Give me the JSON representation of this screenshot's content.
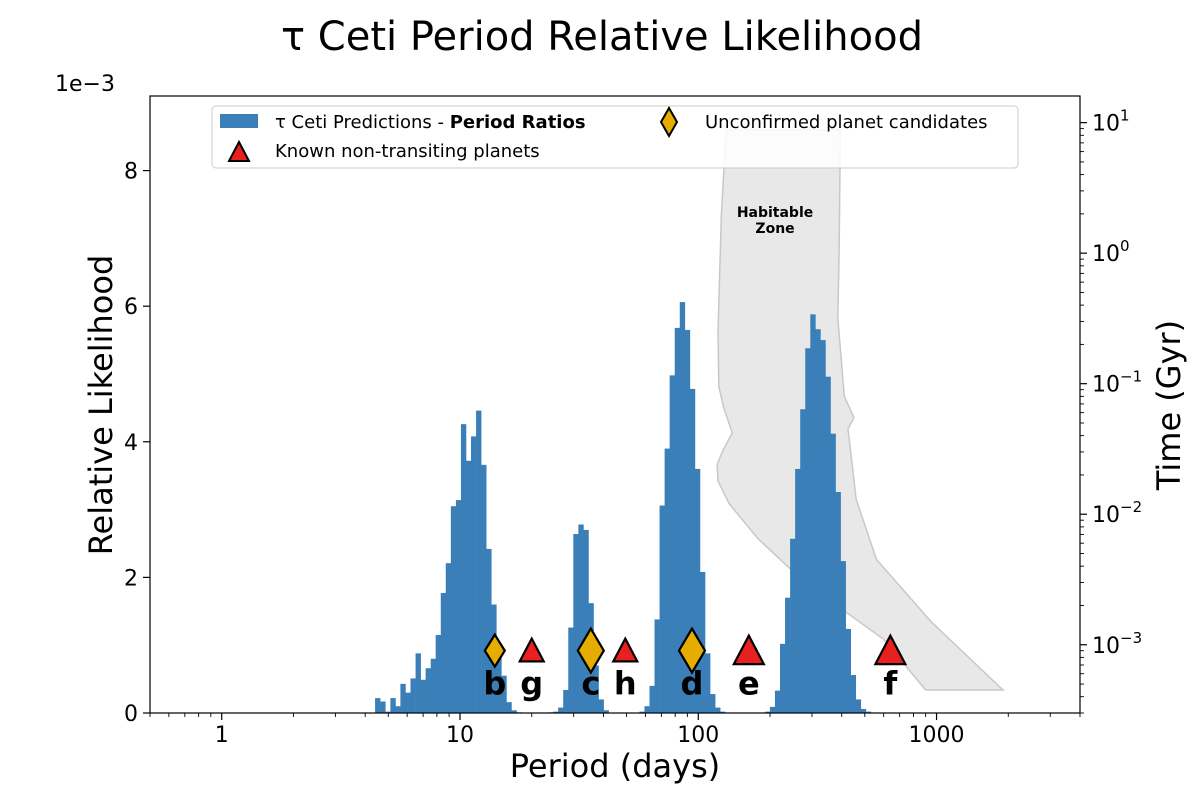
{
  "chart_data": {
    "type": "bar",
    "title": "τ Ceti Period Relative Likelihood",
    "xlabel": "Period (days)",
    "ylabel": "Relative Likelihood",
    "y2label": "Time (Gyr)",
    "y_offset_text": "1e−3",
    "x_scale": "log",
    "xlim": [
      0.5,
      4000
    ],
    "ylim": [
      0,
      9.1
    ],
    "y_scale_factor": 0.001,
    "y2_scale": "log",
    "y2lim": [
      0.0003,
      16
    ],
    "x_ticks": [
      {
        "value": 1,
        "label": "1"
      },
      {
        "value": 10,
        "label": "10"
      },
      {
        "value": 100,
        "label": "100"
      },
      {
        "value": 1000,
        "label": "1000"
      }
    ],
    "y_ticks": [
      {
        "value": 0,
        "label": "0"
      },
      {
        "value": 2,
        "label": "2"
      },
      {
        "value": 4,
        "label": "4"
      },
      {
        "value": 6,
        "label": "6"
      },
      {
        "value": 8,
        "label": "8"
      }
    ],
    "y2_ticks": [
      {
        "value": 0.001,
        "base": "10",
        "exp": "−3"
      },
      {
        "value": 0.01,
        "base": "10",
        "exp": "−2"
      },
      {
        "value": 0.1,
        "base": "10",
        "exp": "−1"
      },
      {
        "value": 1,
        "base": "10",
        "exp": "0"
      },
      {
        "value": 10,
        "base": "10",
        "exp": "1"
      }
    ],
    "colors": {
      "histogram": "#3a7fb8",
      "known": "#e8201f",
      "candidate": "#e6ac00",
      "habitable": "#e8e8e8",
      "habitable_edge": "#c8c8c8"
    },
    "histogram": {
      "name": "τ Ceti Predictions - Period Ratios",
      "bin_ratio": 1.05,
      "bins": [
        {
          "p": 4.51,
          "v": 0.22
        },
        {
          "p": 4.74,
          "v": 0.17
        },
        {
          "p": 4.98,
          "v": 0.02
        },
        {
          "p": 5.23,
          "v": 0.22
        },
        {
          "p": 5.49,
          "v": 0.1
        },
        {
          "p": 5.76,
          "v": 0.43
        },
        {
          "p": 6.05,
          "v": 0.3
        },
        {
          "p": 6.35,
          "v": 0.51
        },
        {
          "p": 6.67,
          "v": 0.88
        },
        {
          "p": 7.0,
          "v": 0.49
        },
        {
          "p": 7.35,
          "v": 0.66
        },
        {
          "p": 7.72,
          "v": 0.8
        },
        {
          "p": 8.1,
          "v": 1.15
        },
        {
          "p": 8.51,
          "v": 1.77
        },
        {
          "p": 8.93,
          "v": 2.21
        },
        {
          "p": 9.38,
          "v": 3.05
        },
        {
          "p": 9.85,
          "v": 3.14
        },
        {
          "p": 10.34,
          "v": 4.26
        },
        {
          "p": 10.86,
          "v": 3.72
        },
        {
          "p": 11.4,
          "v": 4.08
        },
        {
          "p": 11.97,
          "v": 4.46
        },
        {
          "p": 12.57,
          "v": 3.66
        },
        {
          "p": 13.2,
          "v": 2.42
        },
        {
          "p": 13.86,
          "v": 1.6
        },
        {
          "p": 14.55,
          "v": 0.98
        },
        {
          "p": 15.28,
          "v": 0.55
        },
        {
          "p": 16.04,
          "v": 0.16
        },
        {
          "p": 16.85,
          "v": 0.04
        },
        {
          "p": 17.69,
          "v": 0.01
        },
        {
          "p": 24.0,
          "v": 0.01
        },
        {
          "p": 25.2,
          "v": 0.02
        },
        {
          "p": 26.46,
          "v": 0.08
        },
        {
          "p": 27.78,
          "v": 0.34
        },
        {
          "p": 29.17,
          "v": 1.26
        },
        {
          "p": 30.63,
          "v": 2.64
        },
        {
          "p": 32.16,
          "v": 2.78
        },
        {
          "p": 33.77,
          "v": 2.7
        },
        {
          "p": 35.46,
          "v": 1.62
        },
        {
          "p": 37.23,
          "v": 0.7
        },
        {
          "p": 39.09,
          "v": 0.2
        },
        {
          "p": 41.04,
          "v": 0.04
        },
        {
          "p": 58.0,
          "v": 0.02
        },
        {
          "p": 60.9,
          "v": 0.1
        },
        {
          "p": 63.95,
          "v": 0.4
        },
        {
          "p": 67.14,
          "v": 1.38
        },
        {
          "p": 70.5,
          "v": 3.06
        },
        {
          "p": 74.02,
          "v": 3.9
        },
        {
          "p": 77.72,
          "v": 4.98
        },
        {
          "p": 81.61,
          "v": 5.68
        },
        {
          "p": 85.69,
          "v": 6.06
        },
        {
          "p": 89.98,
          "v": 5.65
        },
        {
          "p": 94.48,
          "v": 4.78
        },
        {
          "p": 99.2,
          "v": 3.6
        },
        {
          "p": 104.16,
          "v": 2.08
        },
        {
          "p": 109.37,
          "v": 0.88
        },
        {
          "p": 114.84,
          "v": 0.28
        },
        {
          "p": 120.58,
          "v": 0.08
        },
        {
          "p": 126.61,
          "v": 0.02
        },
        {
          "p": 195.0,
          "v": 0.02
        },
        {
          "p": 204.75,
          "v": 0.09
        },
        {
          "p": 214.99,
          "v": 0.33
        },
        {
          "p": 225.74,
          "v": 1.02
        },
        {
          "p": 237.02,
          "v": 1.7
        },
        {
          "p": 248.88,
          "v": 2.57
        },
        {
          "p": 261.32,
          "v": 3.6
        },
        {
          "p": 274.39,
          "v": 4.48
        },
        {
          "p": 288.11,
          "v": 5.38
        },
        {
          "p": 302.51,
          "v": 5.88
        },
        {
          "p": 317.64,
          "v": 5.66
        },
        {
          "p": 333.52,
          "v": 5.5
        },
        {
          "p": 350.2,
          "v": 4.96
        },
        {
          "p": 367.71,
          "v": 4.12
        },
        {
          "p": 386.09,
          "v": 3.26
        },
        {
          "p": 405.4,
          "v": 2.24
        },
        {
          "p": 425.67,
          "v": 1.24
        },
        {
          "p": 446.95,
          "v": 0.56
        },
        {
          "p": 469.3,
          "v": 0.2
        },
        {
          "p": 492.77,
          "v": 0.06
        },
        {
          "p": 517.4,
          "v": 0.02
        }
      ]
    },
    "planets": [
      {
        "label": "b",
        "period": 14.0,
        "kind": "candidate",
        "size": "small"
      },
      {
        "label": "g",
        "period": 20.0,
        "kind": "known",
        "size": "small"
      },
      {
        "label": "c",
        "period": 35.4,
        "kind": "candidate",
        "size": "large"
      },
      {
        "label": "h",
        "period": 49.4,
        "kind": "known",
        "size": "small"
      },
      {
        "label": "d",
        "period": 94.1,
        "kind": "candidate",
        "size": "large"
      },
      {
        "label": "e",
        "period": 163.0,
        "kind": "known",
        "size": "large"
      },
      {
        "label": "f",
        "period": 640.0,
        "kind": "known",
        "size": "large"
      }
    ],
    "marker_y": 0.92,
    "label_y": 0.45,
    "habitable_zone": {
      "label_line1": "Habitable",
      "label_line2": "Zone",
      "label_period": 210,
      "label_time": 1.9,
      "inner": [
        {
          "p": 131,
          "t": 8.8
        },
        {
          "p": 125,
          "t": 2.0
        },
        {
          "p": 121,
          "t": 0.25
        },
        {
          "p": 122,
          "t": 0.095
        },
        {
          "p": 128,
          "t": 0.065
        },
        {
          "p": 139,
          "t": 0.042
        },
        {
          "p": 126,
          "t": 0.03
        },
        {
          "p": 120,
          "t": 0.024
        },
        {
          "p": 121,
          "t": 0.018
        },
        {
          "p": 135,
          "t": 0.012
        },
        {
          "p": 178,
          "t": 0.0065
        },
        {
          "p": 280,
          "t": 0.003
        },
        {
          "p": 600,
          "t": 0.0011
        },
        {
          "p": 900,
          "t": 0.00045
        }
      ],
      "outer": [
        {
          "p": 1900,
          "t": 0.00045
        },
        {
          "p": 950,
          "t": 0.0015
        },
        {
          "p": 560,
          "t": 0.0045
        },
        {
          "p": 460,
          "t": 0.013
        },
        {
          "p": 425,
          "t": 0.045
        },
        {
          "p": 450,
          "t": 0.055
        },
        {
          "p": 410,
          "t": 0.08
        },
        {
          "p": 385,
          "t": 0.32
        },
        {
          "p": 390,
          "t": 1.0
        },
        {
          "p": 395,
          "t": 8.8
        }
      ]
    },
    "legend": {
      "placement": "top-center",
      "entries": [
        {
          "marker": "bar",
          "text_prefix": "τ Ceti Predictions - ",
          "text_bold": "Period Ratios"
        },
        {
          "marker": "triangle",
          "text": "Known non-transiting planets"
        },
        {
          "marker": "diamond",
          "text": "Unconfirmed planet candidates"
        }
      ]
    }
  }
}
